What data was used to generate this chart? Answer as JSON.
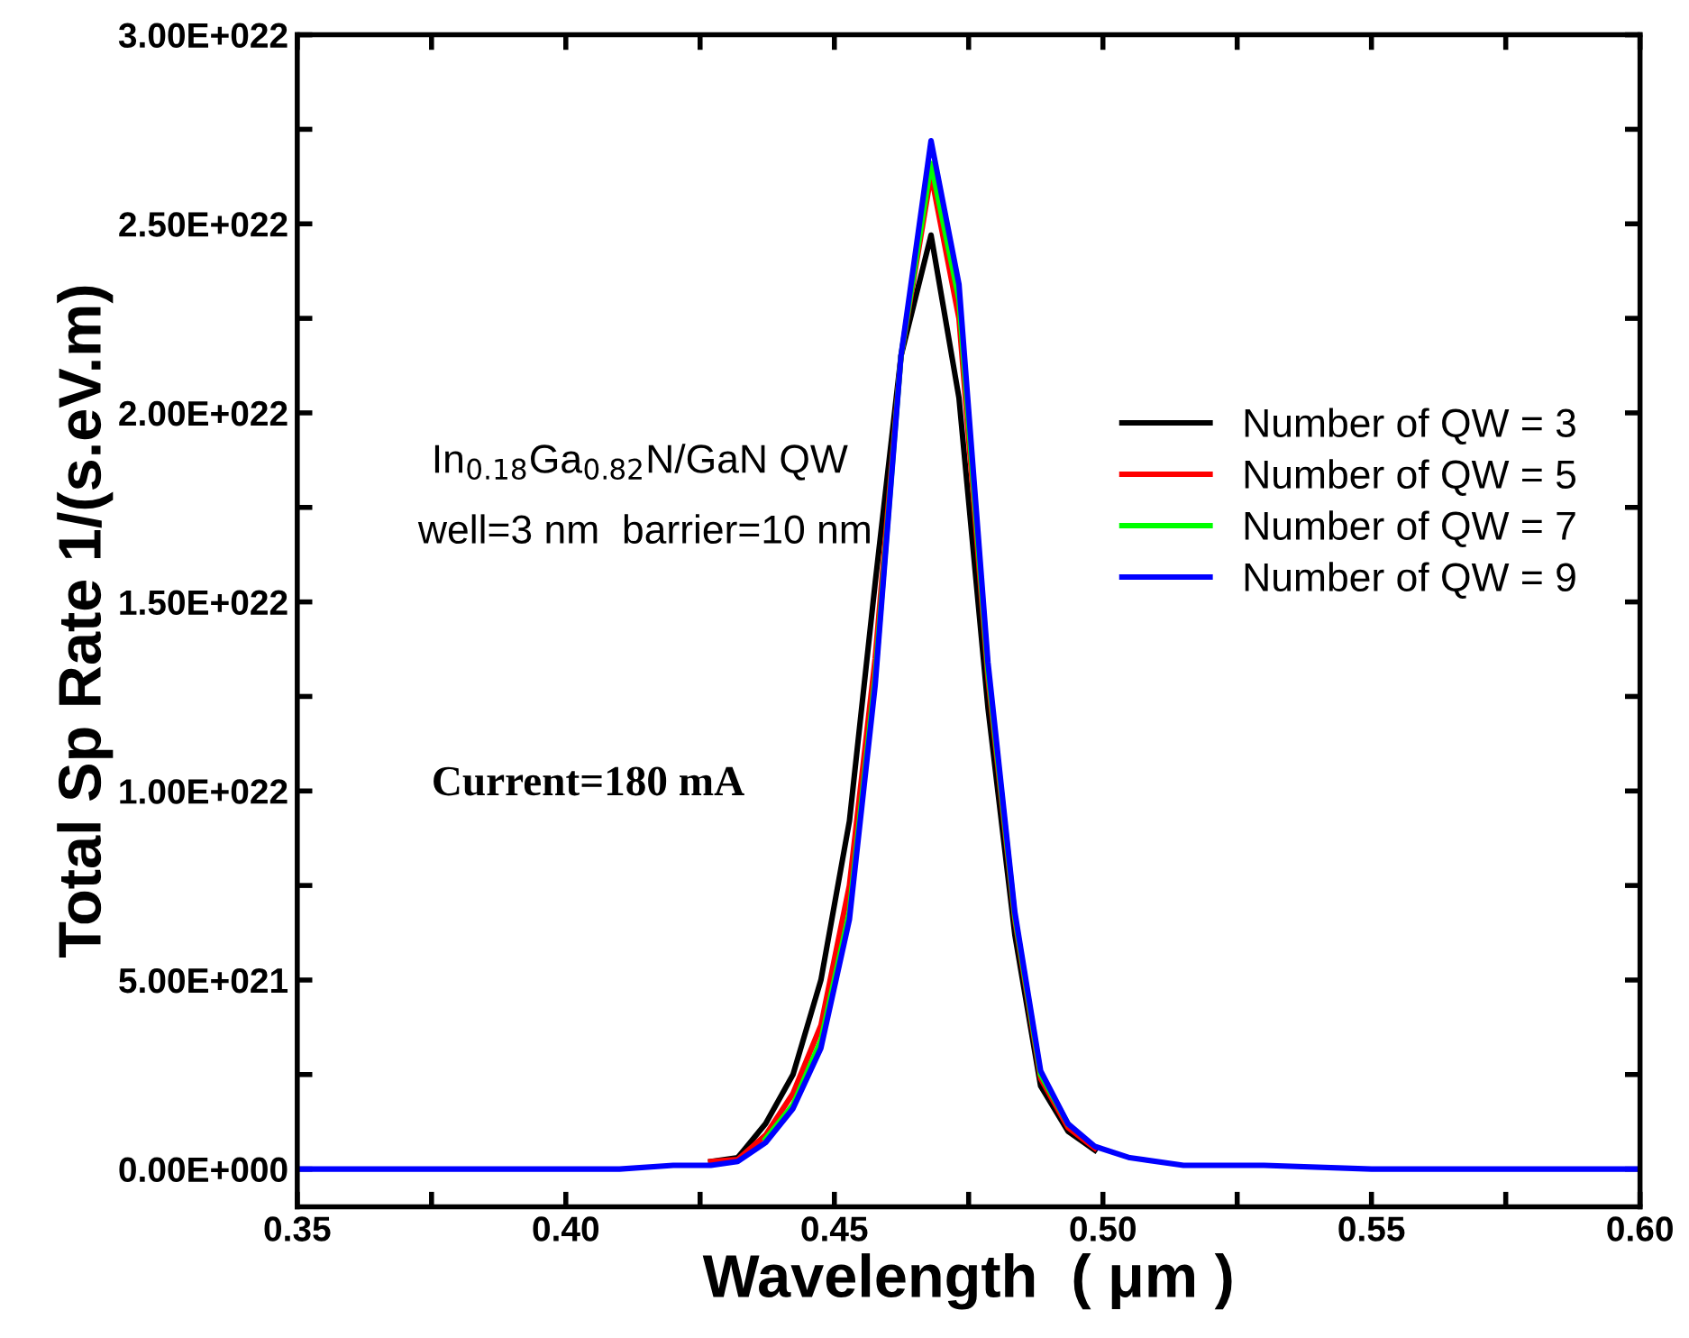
{
  "chart_data": {
    "type": "line",
    "xlabel": "Wavelength  ( μm )",
    "ylabel": "Total Sp Rate 1/(s.eV.m)",
    "x": [
      0.35,
      0.38,
      0.4,
      0.41,
      0.42,
      0.427,
      0.432,
      0.4372,
      0.4423,
      0.4475,
      0.4528,
      0.4576,
      0.4624,
      0.468,
      0.4732,
      0.4786,
      0.4836,
      0.4884,
      0.4935,
      0.4985,
      0.505,
      0.515,
      0.53,
      0.55,
      0.6
    ],
    "series": [
      {
        "name": "Number of QW = 3",
        "color": "#000000",
        "values": [
          null,
          null,
          null,
          null,
          null,
          2e+20,
          3e+20,
          1.2e+21,
          2.5e+21,
          5e+21,
          9.2e+21,
          1.55e+22,
          2.15e+22,
          2.47e+22,
          2.04e+22,
          1.22e+22,
          6.2e+21,
          2.2e+21,
          1e+21,
          5e+20,
          null,
          null,
          null,
          null,
          null
        ]
      },
      {
        "name": "Number of QW = 5",
        "color": "#ff0000",
        "values": [
          null,
          null,
          null,
          null,
          null,
          2e+20,
          2.5e+20,
          9e+20,
          2e+21,
          3.8e+21,
          7.5e+21,
          1.35e+22,
          2.15e+22,
          2.63e+22,
          2.25e+22,
          1.3e+22,
          6.6e+21,
          2.4e+21,
          1.1e+21,
          5.5e+20,
          null,
          null,
          null,
          null,
          null
        ]
      },
      {
        "name": "Number of QW = 7",
        "color": "#00ff00",
        "values": [
          null,
          null,
          null,
          null,
          null,
          null,
          null,
          8e+20,
          1.7e+21,
          3.4e+21,
          6.8e+21,
          1.3e+22,
          2.15e+22,
          2.66e+22,
          2.3e+22,
          1.32e+22,
          6.7e+21,
          2.5e+21,
          1.2e+21,
          null,
          null,
          null,
          null,
          null,
          null
        ]
      },
      {
        "name": "Number of QW = 9",
        "color": "#0000ff",
        "values": [
          0,
          0,
          0,
          0,
          1e+20,
          1e+20,
          2e+20,
          7e+20,
          1.6e+21,
          3.2e+21,
          6.6e+21,
          1.28e+22,
          2.15e+22,
          2.72e+22,
          2.34e+22,
          1.34e+22,
          6.8e+21,
          2.6e+21,
          1.2e+21,
          6e+20,
          3e+20,
          1e+20,
          1e+20,
          0,
          0
        ]
      }
    ],
    "xlim": [
      0.35,
      0.6
    ],
    "xticks": [
      {
        "value": 0.35,
        "label": "0.35"
      },
      {
        "value": 0.375,
        "label": null
      },
      {
        "value": 0.4,
        "label": "0.40"
      },
      {
        "value": 0.425,
        "label": null
      },
      {
        "value": 0.45,
        "label": "0.45"
      },
      {
        "value": 0.475,
        "label": null
      },
      {
        "value": 0.5,
        "label": "0.50"
      },
      {
        "value": 0.525,
        "label": null
      },
      {
        "value": 0.55,
        "label": "0.55"
      },
      {
        "value": 0.575,
        "label": null
      },
      {
        "value": 0.6,
        "label": "0.60"
      }
    ],
    "ylim": [
      -1e+21,
      3e+22
    ],
    "yticks": [
      {
        "value": 0,
        "label": "0.00E+000"
      },
      {
        "value": 2.5e+21,
        "label": null
      },
      {
        "value": 5e+21,
        "label": "5.00E+021"
      },
      {
        "value": 7.5e+21,
        "label": null
      },
      {
        "value": 1e+22,
        "label": "1.00E+022"
      },
      {
        "value": 1.25e+22,
        "label": null
      },
      {
        "value": 1.5e+22,
        "label": "1.50E+022"
      },
      {
        "value": 1.75e+22,
        "label": null
      },
      {
        "value": 2e+22,
        "label": "2.00E+022"
      },
      {
        "value": 2.25e+22,
        "label": null
      },
      {
        "value": 2.5e+22,
        "label": "2.50E+022"
      },
      {
        "value": 2.75e+22,
        "label": null
      },
      {
        "value": 3e+22,
        "label": "3.00E+022"
      }
    ],
    "annotations": [
      "In$_{0.18}$Ga$_{0.82}$N/GaN QW",
      "well=3 nm  barrier=10 nm",
      "Current=180 mA"
    ],
    "grid": false,
    "legend": "right",
    "marker": "none",
    "line_style": "solid"
  }
}
